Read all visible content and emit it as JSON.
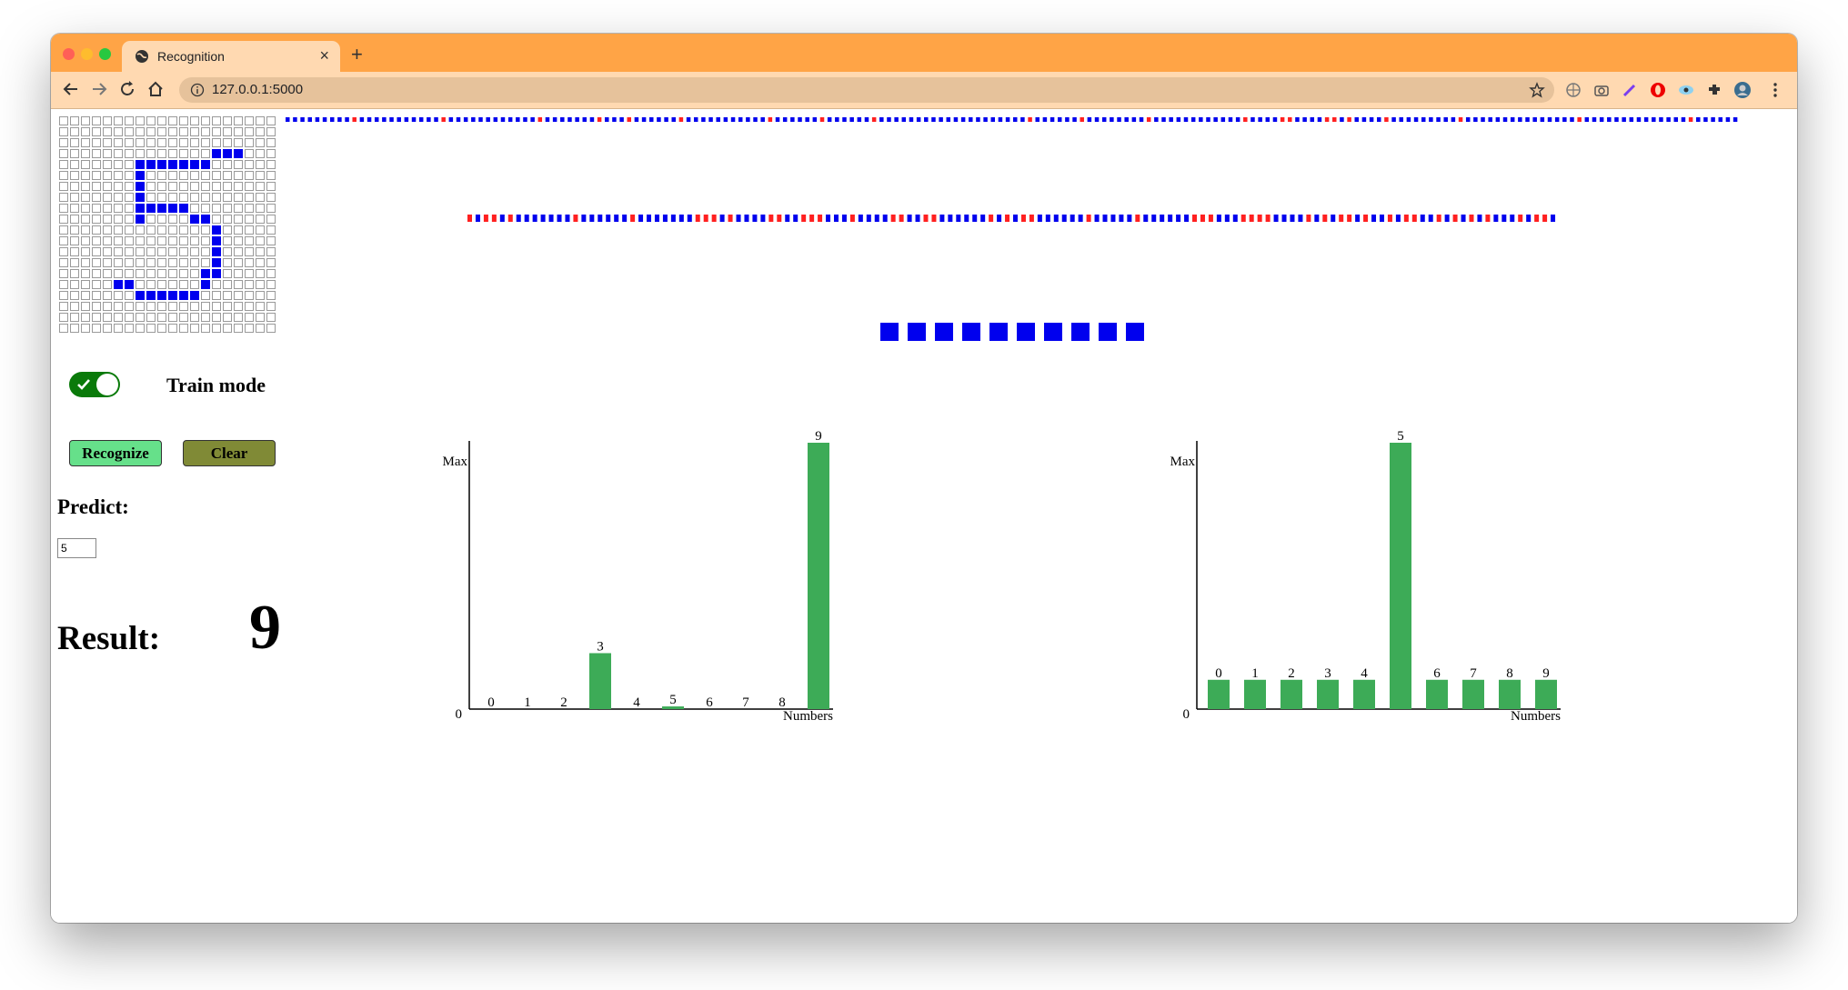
{
  "browser": {
    "tab_title": "Recognition",
    "url": "127.0.0.1:5000",
    "tab_close": "×",
    "new_tab": "+"
  },
  "drawing_grid": {
    "cols": 20,
    "rows": 20,
    "on_cells": [
      [
        3,
        14
      ],
      [
        3,
        15
      ],
      [
        3,
        16
      ],
      [
        4,
        7
      ],
      [
        4,
        8
      ],
      [
        4,
        9
      ],
      [
        4,
        10
      ],
      [
        4,
        11
      ],
      [
        4,
        12
      ],
      [
        4,
        13
      ],
      [
        5,
        7
      ],
      [
        6,
        7
      ],
      [
        7,
        7
      ],
      [
        8,
        7
      ],
      [
        8,
        8
      ],
      [
        8,
        9
      ],
      [
        8,
        10
      ],
      [
        8,
        11
      ],
      [
        9,
        7
      ],
      [
        9,
        12
      ],
      [
        9,
        13
      ],
      [
        10,
        14
      ],
      [
        11,
        14
      ],
      [
        12,
        14
      ],
      [
        13,
        14
      ],
      [
        14,
        13
      ],
      [
        14,
        14
      ],
      [
        15,
        5
      ],
      [
        15,
        6
      ],
      [
        15,
        13
      ],
      [
        16,
        7
      ],
      [
        16,
        8
      ],
      [
        16,
        9
      ],
      [
        16,
        10
      ],
      [
        16,
        11
      ],
      [
        16,
        12
      ]
    ],
    "on_color": "#0000ee"
  },
  "network": {
    "input_layer_count": 196,
    "hidden_layer_count": 134,
    "output_layer_count": 10,
    "active_color": "#0000ee",
    "inactive_color": "#ff2020"
  },
  "controls": {
    "train_mode_label": "Train mode",
    "train_mode_on": true,
    "recognize_label": "Recognize",
    "clear_label": "Clear",
    "predict_label": "Predict:",
    "predict_value": "5",
    "result_label": "Result:",
    "result_value": "9"
  },
  "chart_data": [
    {
      "type": "bar",
      "categories": [
        "0",
        "1",
        "2",
        "3",
        "4",
        "5",
        "6",
        "7",
        "8",
        "9"
      ],
      "values": [
        0,
        0,
        0,
        0.21,
        0,
        0.01,
        0,
        0,
        0,
        1.0
      ],
      "data_labels": [
        "0",
        "1",
        "2",
        "3",
        "4",
        "5",
        "6",
        "7",
        "8",
        "9"
      ],
      "xlabel": "Numbers",
      "ytick_labels": [
        "0",
        "Max"
      ],
      "ylim": [
        0,
        1.0
      ],
      "bar_color": "#3dab57"
    },
    {
      "type": "bar",
      "categories": [
        "0",
        "1",
        "2",
        "3",
        "4",
        "5",
        "6",
        "7",
        "8",
        "9"
      ],
      "values": [
        0.11,
        0.11,
        0.11,
        0.11,
        0.11,
        1.0,
        0.11,
        0.11,
        0.11,
        0.11
      ],
      "data_labels": [
        "0",
        "1",
        "2",
        "3",
        "4",
        "5",
        "6",
        "7",
        "8",
        "9"
      ],
      "xlabel": "Numbers",
      "ytick_labels": [
        "0",
        "Max"
      ],
      "ylim": [
        0,
        1.0
      ],
      "bar_color": "#3dab57"
    }
  ]
}
